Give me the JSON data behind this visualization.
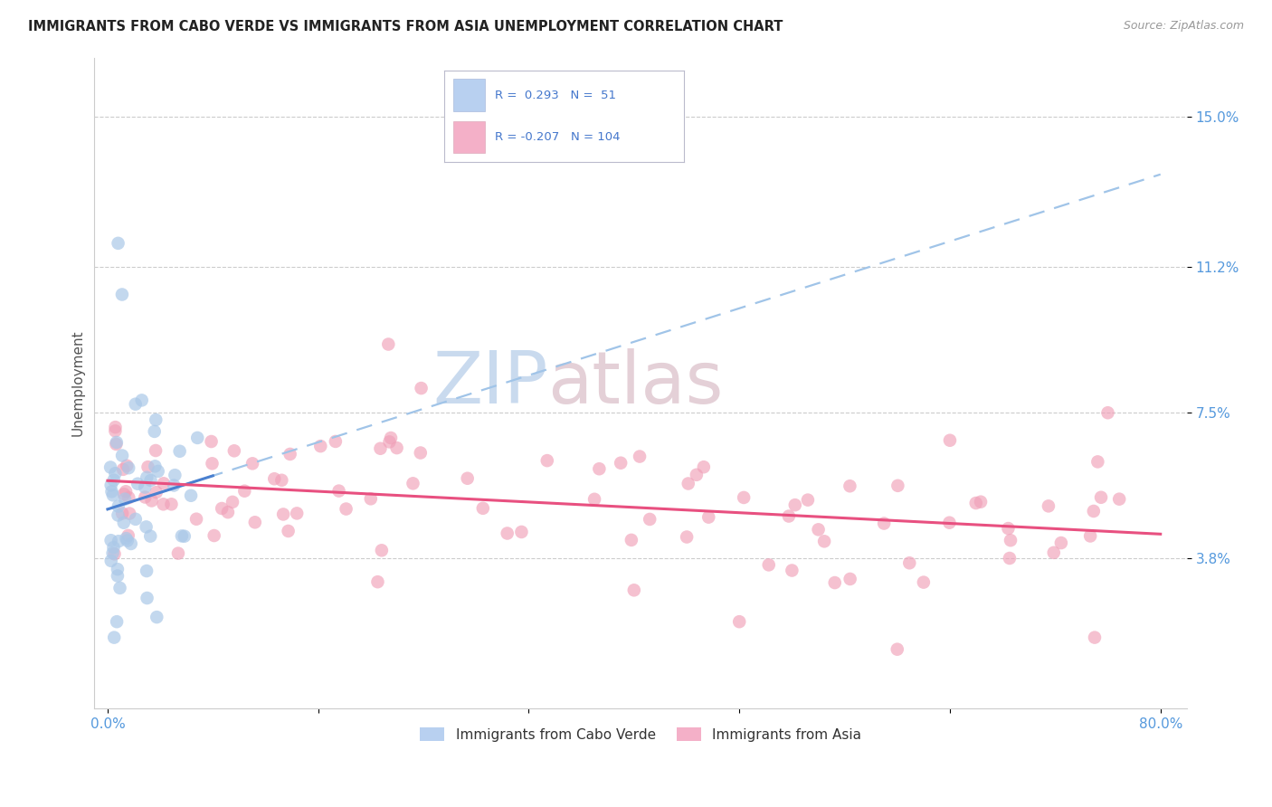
{
  "title": "IMMIGRANTS FROM CABO VERDE VS IMMIGRANTS FROM ASIA UNEMPLOYMENT CORRELATION CHART",
  "source": "Source: ZipAtlas.com",
  "ylabel": "Unemployment",
  "y_ticks": [
    3.8,
    7.5,
    11.2,
    15.0
  ],
  "x_min": 0.0,
  "x_max": 80.0,
  "y_min": 0.0,
  "y_max": 16.5,
  "cabo_verde_R": 0.293,
  "cabo_verde_N": 51,
  "asia_R": -0.207,
  "asia_N": 104,
  "cabo_verde_color": "#aac8e8",
  "asia_color": "#f0a0b8",
  "cabo_verde_line_color": "#4a80d0",
  "asia_line_color": "#e85080",
  "dashed_line_color": "#a0c4e8",
  "watermark_zip_color": "#c8daf0",
  "watermark_atlas_color": "#d8c8c8",
  "legend_box_color": "#e8e8f8",
  "legend_text_color": "#4477cc"
}
